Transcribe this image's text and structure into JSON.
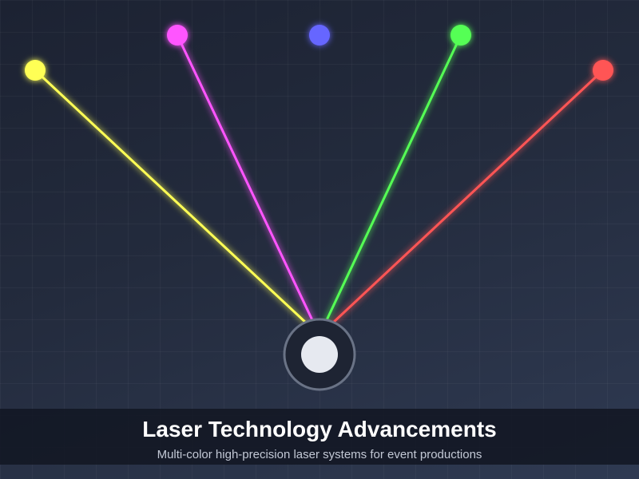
{
  "caption": {
    "title": "Laser Technology Advancements",
    "subtitle": "Multi-color high-precision laser systems for event productions"
  },
  "lasers": [
    {
      "name": "yellow-laser",
      "color": "#ffff55"
    },
    {
      "name": "magenta-laser",
      "color": "#ff55ff"
    },
    {
      "name": "blue-laser",
      "color": "#6666ff"
    },
    {
      "name": "green-laser",
      "color": "#55ff55"
    },
    {
      "name": "red-laser",
      "color": "#ff5555"
    }
  ],
  "projector": {
    "body_color": "#1e2433",
    "ring_color": "#6a7386",
    "lens_color": "#e6e9f0"
  }
}
